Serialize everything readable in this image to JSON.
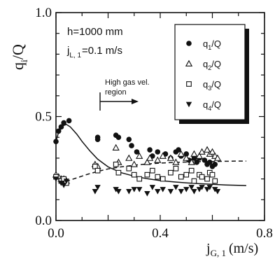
{
  "chart_data": {
    "type": "scatter",
    "xlabel_main": "j",
    "xlabel_sub": "G, 1",
    "xlabel_unit": "(m/s)",
    "ylabel_main": "q",
    "ylabel_sub": "i",
    "ylabel_rest": "/Q",
    "xlim": [
      0.0,
      0.8
    ],
    "ylim": [
      0.0,
      1.0
    ],
    "x_ticks": [
      "0.0",
      "0.4",
      "0.8"
    ],
    "y_ticks": [
      "0.0",
      "0.5",
      "1.0"
    ],
    "x_tick_values": [
      0.0,
      0.4,
      0.8
    ],
    "y_tick_values": [
      0.0,
      0.5,
      1.0
    ],
    "grid": false,
    "legend_position": "top-right",
    "annotations": {
      "height": "h=1000 mm",
      "liquid_main": "j",
      "liquid_sub": "L, 1",
      "liquid_value": "=0.1 m/s",
      "region_line1": "High gas vel.",
      "region_line2": "region"
    },
    "series": [
      {
        "name_main": "q",
        "name_sub": "1",
        "name_rest": "/Q",
        "marker": "filled-circle",
        "points": [
          [
            0.0,
            0.38
          ],
          [
            0.01,
            0.43
          ],
          [
            0.02,
            0.45
          ],
          [
            0.03,
            0.47
          ],
          [
            0.05,
            0.48
          ],
          [
            0.16,
            0.4
          ],
          [
            0.16,
            0.39
          ],
          [
            0.23,
            0.41
          ],
          [
            0.24,
            0.4
          ],
          [
            0.28,
            0.39
          ],
          [
            0.29,
            0.36
          ],
          [
            0.31,
            0.33
          ],
          [
            0.36,
            0.34
          ],
          [
            0.37,
            0.31
          ],
          [
            0.39,
            0.33
          ],
          [
            0.42,
            0.32
          ],
          [
            0.44,
            0.3
          ],
          [
            0.46,
            0.33
          ],
          [
            0.47,
            0.34
          ],
          [
            0.48,
            0.31
          ],
          [
            0.5,
            0.32
          ],
          [
            0.51,
            0.29
          ],
          [
            0.53,
            0.3
          ],
          [
            0.54,
            0.28
          ],
          [
            0.55,
            0.3
          ],
          [
            0.57,
            0.29
          ],
          [
            0.58,
            0.27
          ],
          [
            0.59,
            0.28
          ],
          [
            0.6,
            0.26
          ],
          [
            0.61,
            0.27
          ]
        ]
      },
      {
        "name_main": "q",
        "name_sub": "2",
        "name_rest": "/Q",
        "marker": "open-triangle",
        "points": [
          [
            0.0,
            0.22
          ],
          [
            0.01,
            0.21
          ],
          [
            0.02,
            0.2
          ],
          [
            0.03,
            0.2
          ],
          [
            0.04,
            0.19
          ],
          [
            0.15,
            0.27
          ],
          [
            0.16,
            0.26
          ],
          [
            0.23,
            0.35
          ],
          [
            0.24,
            0.28
          ],
          [
            0.28,
            0.3
          ],
          [
            0.3,
            0.27
          ],
          [
            0.32,
            0.31
          ],
          [
            0.35,
            0.28
          ],
          [
            0.36,
            0.3
          ],
          [
            0.39,
            0.29
          ],
          [
            0.41,
            0.31
          ],
          [
            0.44,
            0.3
          ],
          [
            0.46,
            0.28
          ],
          [
            0.48,
            0.32
          ],
          [
            0.5,
            0.3
          ],
          [
            0.52,
            0.28
          ],
          [
            0.53,
            0.32
          ],
          [
            0.55,
            0.31
          ],
          [
            0.56,
            0.33
          ],
          [
            0.58,
            0.34
          ],
          [
            0.59,
            0.32
          ],
          [
            0.6,
            0.33
          ],
          [
            0.61,
            0.31
          ],
          [
            0.62,
            0.3
          ]
        ]
      },
      {
        "name_main": "q",
        "name_sub": "3",
        "name_rest": "/Q",
        "marker": "open-square",
        "points": [
          [
            0.0,
            0.21
          ],
          [
            0.02,
            0.19
          ],
          [
            0.03,
            0.2
          ],
          [
            0.04,
            0.18
          ],
          [
            0.15,
            0.26
          ],
          [
            0.16,
            0.24
          ],
          [
            0.23,
            0.27
          ],
          [
            0.24,
            0.23
          ],
          [
            0.28,
            0.25
          ],
          [
            0.3,
            0.22
          ],
          [
            0.32,
            0.2
          ],
          [
            0.35,
            0.22
          ],
          [
            0.37,
            0.24
          ],
          [
            0.39,
            0.21
          ],
          [
            0.41,
            0.2
          ],
          [
            0.44,
            0.23
          ],
          [
            0.46,
            0.25
          ],
          [
            0.48,
            0.21
          ],
          [
            0.5,
            0.22
          ],
          [
            0.52,
            0.24
          ],
          [
            0.53,
            0.19
          ],
          [
            0.55,
            0.22
          ],
          [
            0.56,
            0.21
          ],
          [
            0.58,
            0.2
          ],
          [
            0.59,
            0.23
          ],
          [
            0.6,
            0.22
          ],
          [
            0.61,
            0.19
          ]
        ]
      },
      {
        "name_main": "q",
        "name_sub": "4",
        "name_rest": "/Q",
        "marker": "filled-down-triangle",
        "points": [
          [
            0.0,
            0.2
          ],
          [
            0.02,
            0.18
          ],
          [
            0.03,
            0.17
          ],
          [
            0.04,
            0.19
          ],
          [
            0.15,
            0.14
          ],
          [
            0.16,
            0.16
          ],
          [
            0.23,
            0.15
          ],
          [
            0.24,
            0.14
          ],
          [
            0.28,
            0.14
          ],
          [
            0.3,
            0.15
          ],
          [
            0.32,
            0.15
          ],
          [
            0.35,
            0.13
          ],
          [
            0.37,
            0.16
          ],
          [
            0.39,
            0.14
          ],
          [
            0.41,
            0.15
          ],
          [
            0.44,
            0.14
          ],
          [
            0.46,
            0.16
          ],
          [
            0.48,
            0.14
          ],
          [
            0.5,
            0.15
          ],
          [
            0.52,
            0.16
          ],
          [
            0.53,
            0.14
          ],
          [
            0.55,
            0.15
          ],
          [
            0.56,
            0.16
          ],
          [
            0.58,
            0.15
          ],
          [
            0.59,
            0.16
          ],
          [
            0.61,
            0.15
          ],
          [
            0.62,
            0.14
          ]
        ]
      }
    ],
    "curves": [
      {
        "style": "solid",
        "points": [
          [
            0.0,
            0.38
          ],
          [
            0.01,
            0.425
          ],
          [
            0.025,
            0.455
          ],
          [
            0.04,
            0.462
          ],
          [
            0.055,
            0.45
          ],
          [
            0.08,
            0.415
          ],
          [
            0.1,
            0.38
          ],
          [
            0.13,
            0.335
          ],
          [
            0.16,
            0.295
          ],
          [
            0.2,
            0.258
          ],
          [
            0.25,
            0.23
          ],
          [
            0.3,
            0.213
          ],
          [
            0.35,
            0.201
          ],
          [
            0.4,
            0.192
          ],
          [
            0.45,
            0.186
          ],
          [
            0.5,
            0.181
          ],
          [
            0.55,
            0.177
          ],
          [
            0.6,
            0.174
          ],
          [
            0.65,
            0.171
          ],
          [
            0.7,
            0.169
          ],
          [
            0.73,
            0.168
          ]
        ]
      },
      {
        "style": "dashed",
        "points": [
          [
            0.0,
            0.23
          ],
          [
            0.015,
            0.2
          ],
          [
            0.03,
            0.188
          ],
          [
            0.05,
            0.193
          ],
          [
            0.08,
            0.205
          ],
          [
            0.12,
            0.222
          ],
          [
            0.16,
            0.236
          ],
          [
            0.2,
            0.248
          ],
          [
            0.25,
            0.258
          ],
          [
            0.3,
            0.266
          ],
          [
            0.35,
            0.272
          ],
          [
            0.4,
            0.276
          ],
          [
            0.45,
            0.279
          ],
          [
            0.5,
            0.281
          ],
          [
            0.55,
            0.283
          ],
          [
            0.6,
            0.284
          ],
          [
            0.65,
            0.285
          ],
          [
            0.7,
            0.286
          ],
          [
            0.73,
            0.286
          ]
        ]
      }
    ]
  }
}
